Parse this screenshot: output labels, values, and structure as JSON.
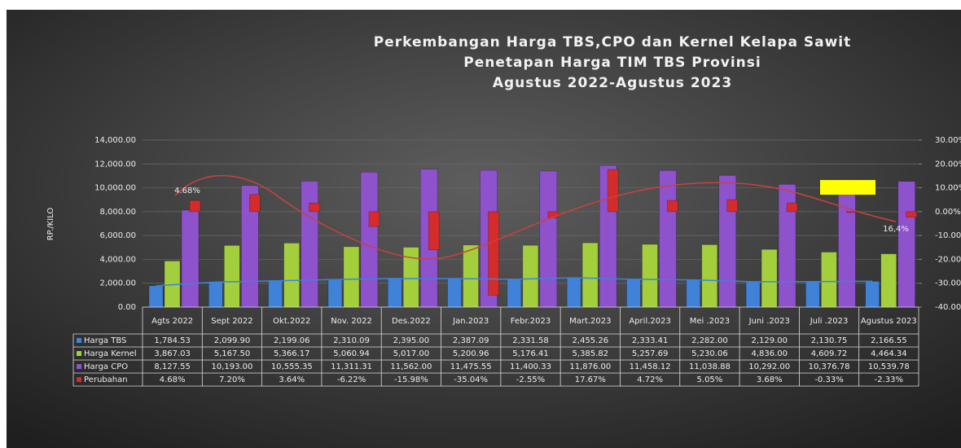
{
  "chart_data": {
    "type": "bar",
    "title": [
      "Perkembangan Harga TBS,CPO dan Kernel Kelapa Sawit",
      "Penetapan Harga TIM TBS Provinsi",
      "Agustus 2022-Agustus 2023"
    ],
    "y_label": "RP./KILO",
    "categories": [
      "Agts 2022",
      "Sept 2022",
      "Okt.2022",
      "Nov. 2022",
      "Des.2022",
      "Jan.2023",
      "Febr.2023",
      "Mart.2023",
      "April.2023",
      "Mei .2023",
      "Juni .2023",
      "Juli .2023",
      "Agustus 2023"
    ],
    "series": [
      {
        "name": "Harga TBS",
        "color": "#3f82d8",
        "values": [
          1784.53,
          2099.9,
          2199.06,
          2310.09,
          2395.0,
          2387.09,
          2331.58,
          2455.26,
          2333.41,
          2282.0,
          2129.0,
          2130.75,
          2166.55
        ],
        "value_labels": [
          "1,784.53",
          "2,099.90",
          "2,199.06",
          "2,310.09",
          "2,395.00",
          "2,387.09",
          "2,331.58",
          "2,455.26",
          "2,333.41",
          "2,282.00",
          "2,129.00",
          "2,130.75",
          "2,166.55"
        ]
      },
      {
        "name": "Harga Kernel",
        "color": "#a4cf3c",
        "values": [
          3867.03,
          5167.5,
          5366.17,
          5060.94,
          5017.0,
          5200.96,
          5176.41,
          5385.82,
          5257.69,
          5230.06,
          4836.0,
          4609.72,
          4464.34
        ],
        "value_labels": [
          "3,867.03",
          "5,167.50",
          "5,366.17",
          "5,060.94",
          "5,017.00",
          "5,200.96",
          "5,176.41",
          "5,385.82",
          "5,257.69",
          "5,230.06",
          "4,836.00",
          "4,609.72",
          "4,464.34"
        ]
      },
      {
        "name": "Harga CPO",
        "color": "#8d52cc",
        "values": [
          8127.55,
          10193.0,
          10555.35,
          11311.31,
          11562.0,
          11475.55,
          11400.33,
          11876.0,
          11458.12,
          11038.88,
          10292.0,
          10376.78,
          10539.78
        ],
        "value_labels": [
          "8,127.55",
          "10,193.00",
          "10,555.35",
          "11,311.31",
          "11,562.00",
          "11,475.55",
          "11,400.33",
          "11,876.00",
          "11,458.12",
          "11,038.88",
          "10,292.00",
          "10,376.78",
          "10,539.78"
        ]
      },
      {
        "name": "Perubahan",
        "color": "#d42b2b",
        "axis": "y2",
        "values": [
          4.68,
          7.2,
          3.64,
          -6.22,
          -15.98,
          -35.04,
          -2.55,
          17.67,
          4.72,
          5.05,
          3.68,
          -0.33,
          -2.33
        ],
        "value_labels": [
          "4.68%",
          "7.20%",
          "3.64%",
          "-6.22%",
          "-15.98%",
          "-35.04%",
          "-2.55%",
          "17.67%",
          "4.72%",
          "5.05%",
          "3.68%",
          "-0.33%",
          "-2.33%"
        ]
      }
    ],
    "ylim": [
      0,
      14000
    ],
    "yticks": [
      {
        "value": 0,
        "label": "0.00"
      },
      {
        "value": 2000,
        "label": "2,000.00"
      },
      {
        "value": 4000,
        "label": "4,000.00"
      },
      {
        "value": 6000,
        "label": "6,000.00"
      },
      {
        "value": 8000,
        "label": "8,000.00"
      },
      {
        "value": 10000,
        "label": "10,000.00"
      },
      {
        "value": 12000,
        "label": "12,000.00"
      },
      {
        "value": 14000,
        "label": "14,000.00"
      }
    ],
    "y2lim": [
      -40,
      30
    ],
    "y2ticks": [
      {
        "value": -40,
        "label": "-40.00%"
      },
      {
        "value": -30,
        "label": "-30.00%"
      },
      {
        "value": -20,
        "label": "-20.00%"
      },
      {
        "value": -10,
        "label": "-10.00%"
      },
      {
        "value": 0,
        "label": "0.00%"
      },
      {
        "value": 10,
        "label": "10.00%"
      },
      {
        "value": 20,
        "label": "20.00%"
      },
      {
        "value": 30,
        "label": "30.00%"
      }
    ],
    "grid": true,
    "annotations": [
      "4.68%",
      "16,4%"
    ]
  }
}
